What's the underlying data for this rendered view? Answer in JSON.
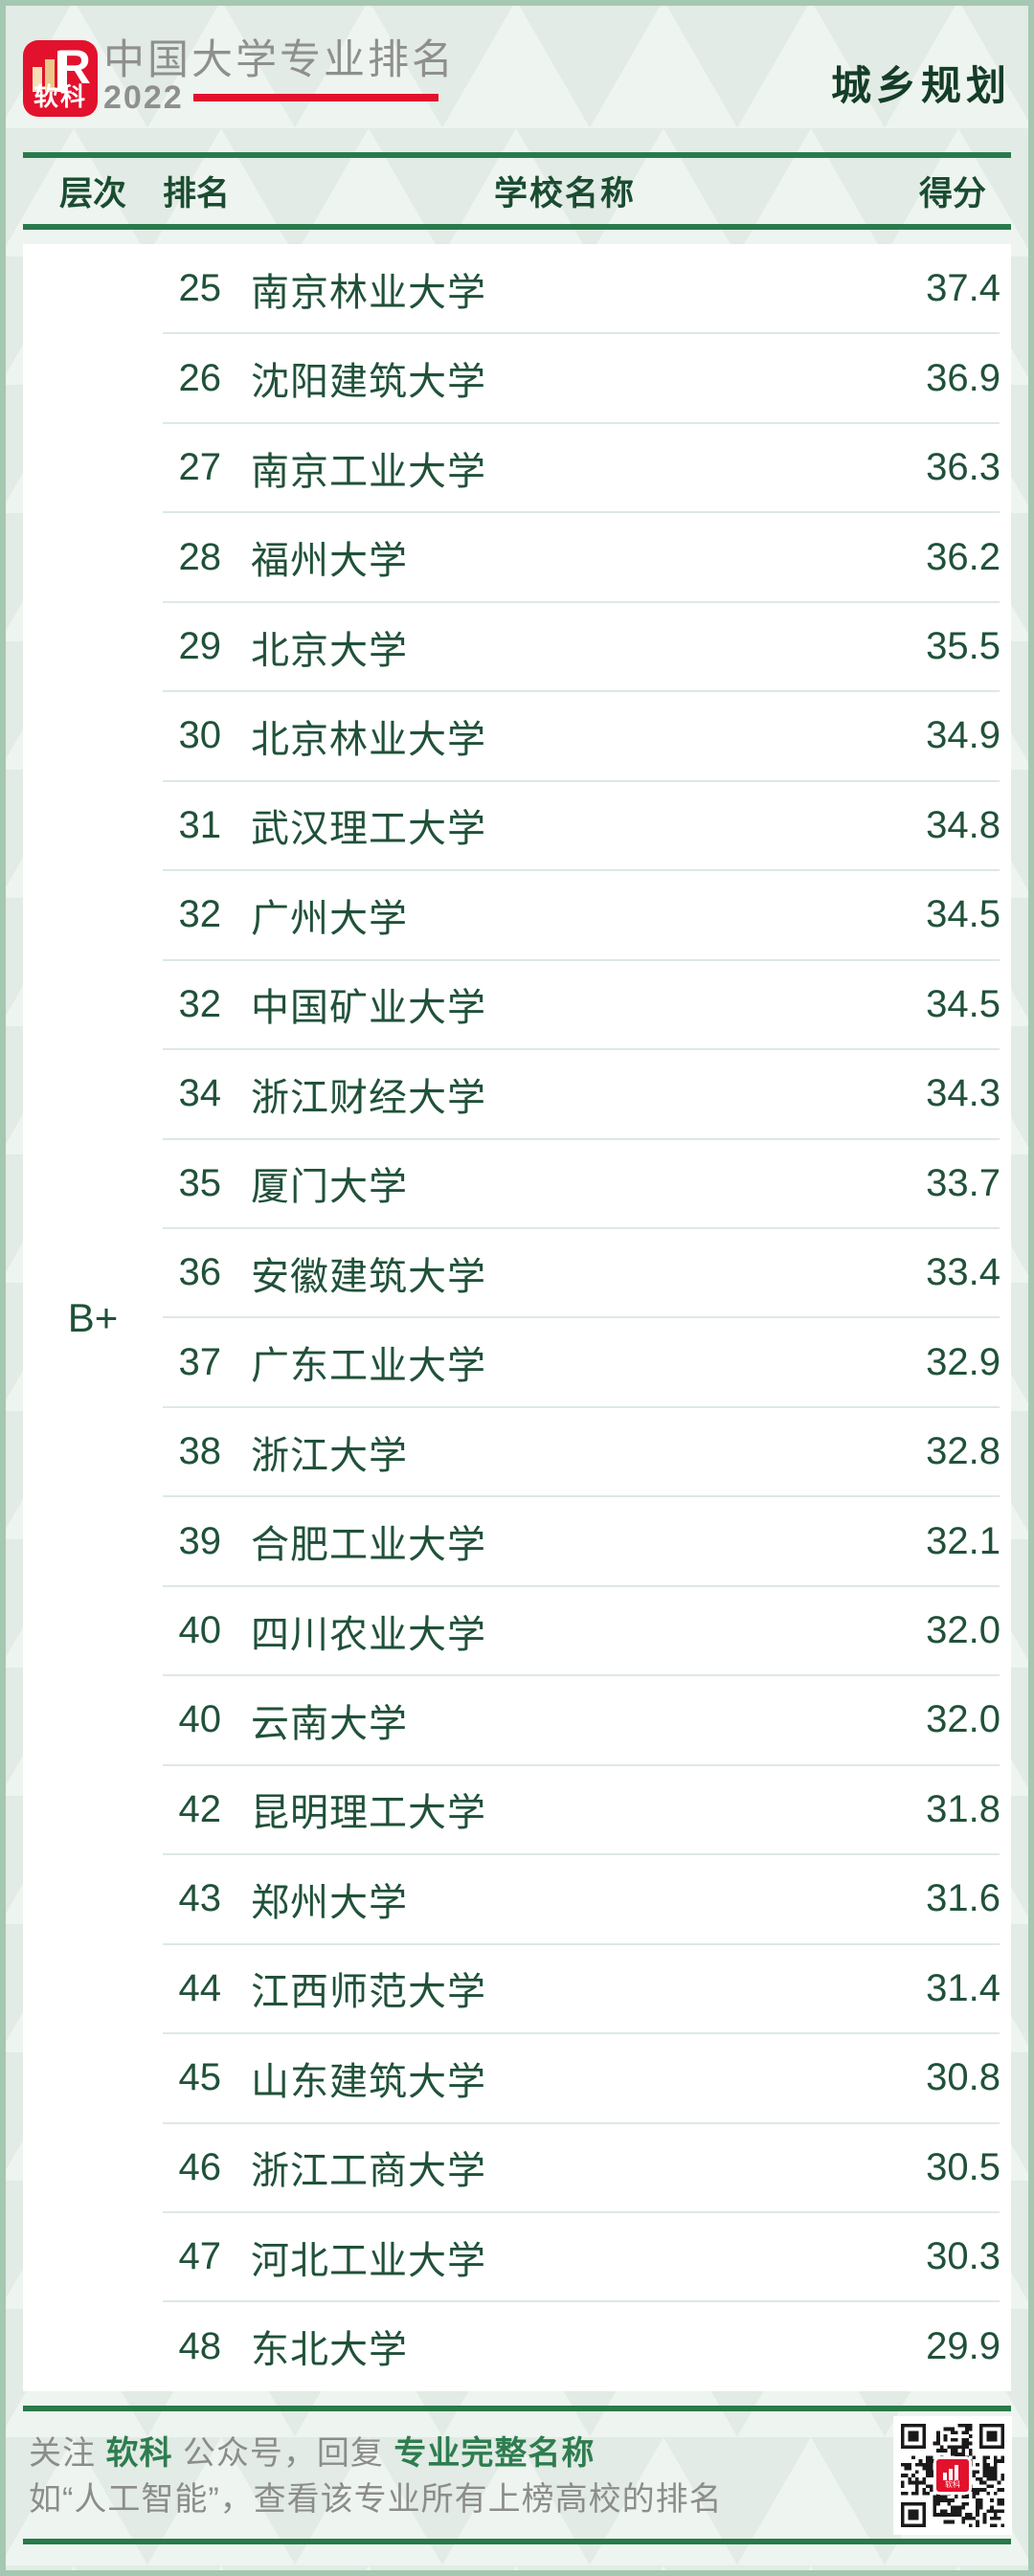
{
  "brand": {
    "logo_text": "软科",
    "logo_letter": "R",
    "title": "中国大学专业排名",
    "year": "2022",
    "subject": "城乡规划"
  },
  "chart_data": {
    "type": "table",
    "title": "中国大学专业排名 2022",
    "subject": "城乡规划",
    "columns": [
      "层次",
      "排名",
      "学校名称",
      "得分"
    ],
    "tier": "B+",
    "rows": [
      {
        "rank": "25",
        "school": "南京林业大学",
        "score": "37.4"
      },
      {
        "rank": "26",
        "school": "沈阳建筑大学",
        "score": "36.9"
      },
      {
        "rank": "27",
        "school": "南京工业大学",
        "score": "36.3"
      },
      {
        "rank": "28",
        "school": "福州大学",
        "score": "36.2"
      },
      {
        "rank": "29",
        "school": "北京大学",
        "score": "35.5"
      },
      {
        "rank": "30",
        "school": "北京林业大学",
        "score": "34.9"
      },
      {
        "rank": "31",
        "school": "武汉理工大学",
        "score": "34.8"
      },
      {
        "rank": "32",
        "school": "广州大学",
        "score": "34.5"
      },
      {
        "rank": "32",
        "school": "中国矿业大学",
        "score": "34.5"
      },
      {
        "rank": "34",
        "school": "浙江财经大学",
        "score": "34.3"
      },
      {
        "rank": "35",
        "school": "厦门大学",
        "score": "33.7"
      },
      {
        "rank": "36",
        "school": "安徽建筑大学",
        "score": "33.4"
      },
      {
        "rank": "37",
        "school": "广东工业大学",
        "score": "32.9"
      },
      {
        "rank": "38",
        "school": "浙江大学",
        "score": "32.8"
      },
      {
        "rank": "39",
        "school": "合肥工业大学",
        "score": "32.1"
      },
      {
        "rank": "40",
        "school": "四川农业大学",
        "score": "32.0"
      },
      {
        "rank": "40",
        "school": "云南大学",
        "score": "32.0"
      },
      {
        "rank": "42",
        "school": "昆明理工大学",
        "score": "31.8"
      },
      {
        "rank": "43",
        "school": "郑州大学",
        "score": "31.6"
      },
      {
        "rank": "44",
        "school": "江西师范大学",
        "score": "31.4"
      },
      {
        "rank": "45",
        "school": "山东建筑大学",
        "score": "30.8"
      },
      {
        "rank": "46",
        "school": "浙江工商大学",
        "score": "30.5"
      },
      {
        "rank": "47",
        "school": "河北工业大学",
        "score": "30.3"
      },
      {
        "rank": "48",
        "school": "东北大学",
        "score": "29.9"
      }
    ]
  },
  "footer": {
    "follow_prefix": "关注 ",
    "brand_name": "软科",
    "follow_middle": " 公众号，回复 ",
    "keyword": "专业完整名称",
    "line2": "如“人工智能”，查看该专业所有上榜高校的排名"
  },
  "colors": {
    "brand_red": "#e2122d",
    "line_green": "#287a4a",
    "row_text_green": "#205139",
    "header_text_green": "#1a4c31",
    "subject_green": "#143d27",
    "footer_green": "#2e7d4f",
    "gray_text": "#8c8c8c",
    "page_bg": "#e2ebe5",
    "border_green": "#a5c8b2",
    "row_separator": "#dde9e2",
    "logo_bar_cream": "#f5e0b7",
    "logo_bar_tan": "#eac78a"
  }
}
